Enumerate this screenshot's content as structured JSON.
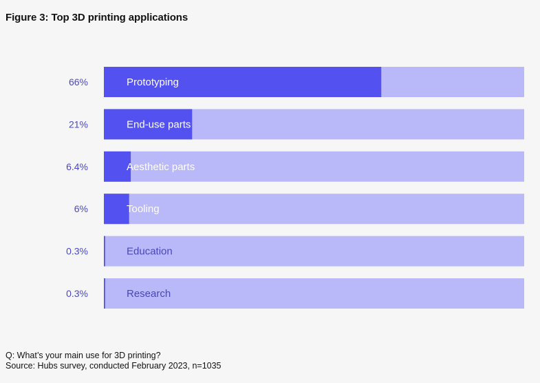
{
  "title": "Figure 3: Top 3D printing applications",
  "footnote": {
    "question": "Q: What’s your main use for 3D printing?",
    "source": "Source: Hubs survey, conducted February 2023, n=1035"
  },
  "colors": {
    "bar_fill": "#5352f0",
    "bar_track": "#b9b9f9",
    "value_label": "#4a48c8",
    "bar_text": "#ffffff",
    "inner_text_on_track": "#4747b8"
  },
  "chart_data": {
    "type": "bar",
    "orientation": "horizontal",
    "title": "Figure 3: Top 3D printing applications",
    "xlim": [
      0,
      100
    ],
    "grid": false,
    "legend": "none",
    "categories": [
      "Prototyping",
      "End-use parts",
      "Aesthetic parts",
      "Tooling",
      "Education",
      "Research"
    ],
    "values": [
      66,
      21,
      6.4,
      6,
      0.3,
      0.3
    ],
    "value_labels": [
      "66%",
      "21%",
      "6.4%",
      "6%",
      "0.3%",
      "0.3%"
    ]
  }
}
